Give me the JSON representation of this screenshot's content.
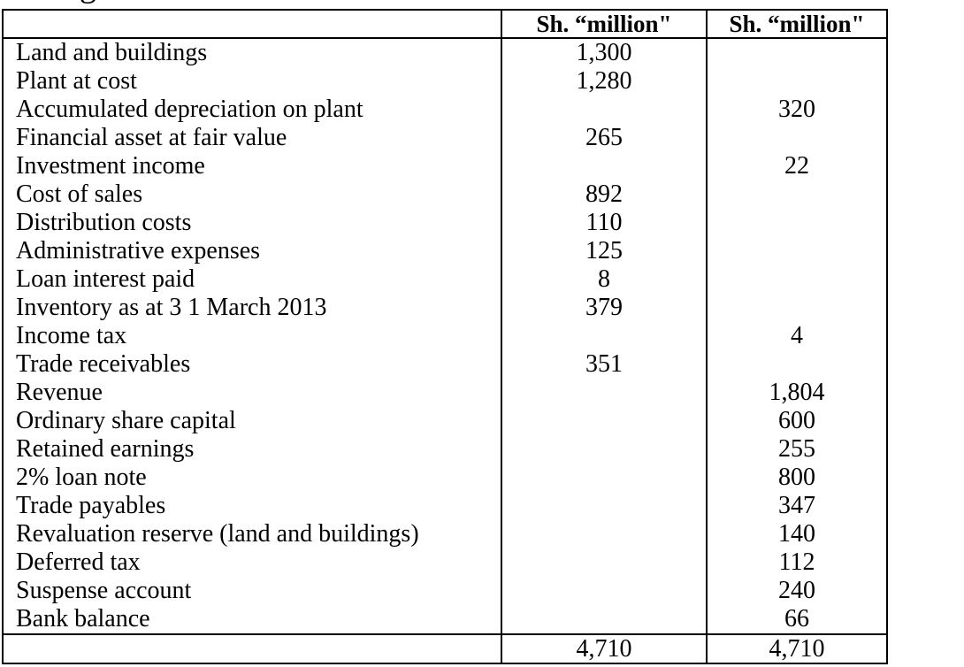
{
  "artifact": {
    "cropped_text_fragment": "g"
  },
  "table": {
    "header": {
      "account_col": "",
      "debit_col": "Sh. “million\"",
      "credit_col": "Sh. “million\""
    },
    "rows": [
      {
        "label": "Land and buildings",
        "debit": "1,300",
        "credit": ""
      },
      {
        "label": "Plant at cost",
        "debit": "1,280",
        "credit": ""
      },
      {
        "label": "Accumulated depreciation on plant",
        "debit": "",
        "credit": "320"
      },
      {
        "label": "Financial asset at fair value",
        "debit": "265",
        "credit": ""
      },
      {
        "label": "Investment income",
        "debit": "",
        "credit": "22"
      },
      {
        "label": "Cost of sales",
        "debit": "892",
        "credit": ""
      },
      {
        "label": "Distribution costs",
        "debit": "110",
        "credit": ""
      },
      {
        "label": "Administrative expenses",
        "debit": "125",
        "credit": ""
      },
      {
        "label": "Loan interest paid",
        "debit": "8",
        "credit": ""
      },
      {
        "label": "Inventory as at 3 1 March 2013",
        "debit": "379",
        "credit": ""
      },
      {
        "label": "Income tax",
        "debit": "",
        "credit": "4"
      },
      {
        "label": "Trade receivables",
        "debit": "351",
        "credit": ""
      },
      {
        "label": "Revenue",
        "debit": "",
        "credit": "1,804"
      },
      {
        "label": "Ordinary share capital",
        "debit": "",
        "credit": "600"
      },
      {
        "label": "Retained earnings",
        "debit": "",
        "credit": "255"
      },
      {
        "label": "2% loan note",
        "debit": "",
        "credit": "800"
      },
      {
        "label": "Trade payables",
        "debit": "",
        "credit": "347"
      },
      {
        "label": "Revaluation reserve (land and buildings)",
        "debit": "",
        "credit": "140"
      },
      {
        "label": "Deferred tax",
        "debit": "",
        "credit": "112"
      },
      {
        "label": "Suspense account",
        "debit": "",
        "credit": "240"
      },
      {
        "label": "Bank balance",
        "debit": "",
        "credit": "66"
      }
    ],
    "totals": {
      "label": "",
      "debit": "4,710",
      "credit": "4,710"
    }
  }
}
